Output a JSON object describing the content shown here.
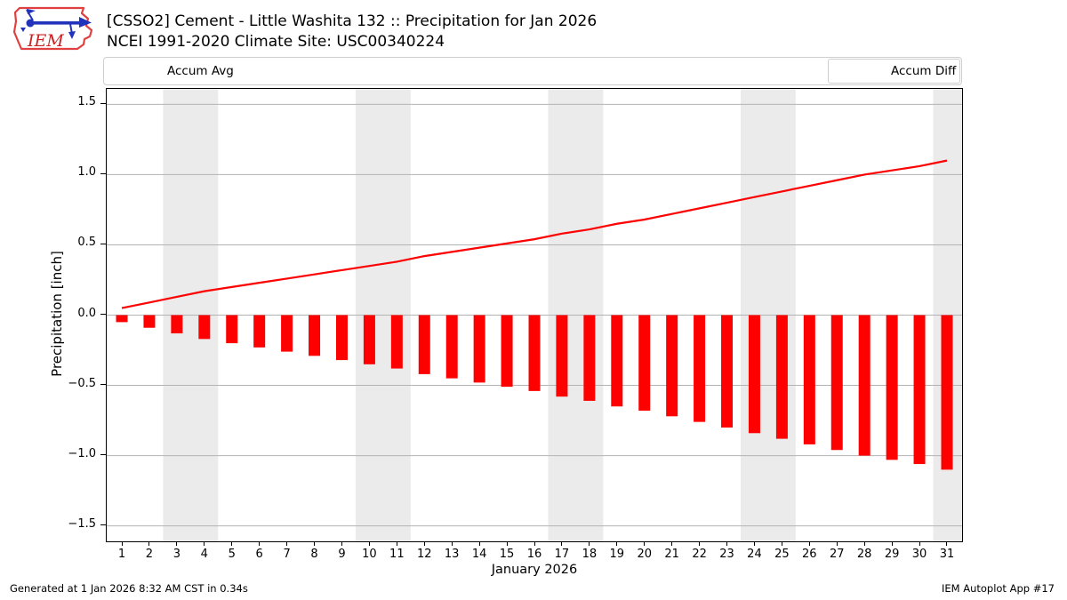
{
  "header": {
    "title_line1": "[CSSO2] Cement - Little Washita 132 :: Precipitation for Jan 2026",
    "title_line2": "NCEI 1991-2020 Climate Site: USC00340224",
    "logo_text": "IEM"
  },
  "legend": {
    "avg_label": "Accum Avg",
    "diff_label": "Accum Diff"
  },
  "footer": {
    "generated": "Generated at 1 Jan 2026 8:32 AM CST in 0.34s",
    "app": "IEM Autoplot App #17"
  },
  "colors": {
    "accent_red": "#ff0000",
    "weekend_band": "#ebebeb",
    "gridline": "#b3b3b3",
    "spine": "#000000",
    "logo_red": "#e04040",
    "logo_blue": "#2233bb"
  },
  "chart_data": {
    "type": "bar",
    "title": "[CSSO2] Cement - Little Washita 132 :: Precipitation for Jan 2026",
    "subtitle": "NCEI 1991-2020 Climate Site: USC00340224",
    "xlabel": "January 2026",
    "ylabel": "Precipitation [inch]",
    "x": [
      1,
      2,
      3,
      4,
      5,
      6,
      7,
      8,
      9,
      10,
      11,
      12,
      13,
      14,
      15,
      16,
      17,
      18,
      19,
      20,
      21,
      22,
      23,
      24,
      25,
      26,
      27,
      28,
      29,
      30,
      31
    ],
    "series": [
      {
        "name": "Accum Avg",
        "type": "line",
        "color": "#ff0000",
        "values": [
          0.05,
          0.09,
          0.13,
          0.17,
          0.2,
          0.23,
          0.26,
          0.29,
          0.32,
          0.35,
          0.38,
          0.42,
          0.45,
          0.48,
          0.51,
          0.54,
          0.58,
          0.61,
          0.65,
          0.68,
          0.72,
          0.76,
          0.8,
          0.84,
          0.88,
          0.92,
          0.96,
          1.0,
          1.03,
          1.06,
          1.1
        ]
      },
      {
        "name": "Accum Diff",
        "type": "bar",
        "color": "#ff0000",
        "values": [
          -0.05,
          -0.09,
          -0.13,
          -0.17,
          -0.2,
          -0.23,
          -0.26,
          -0.29,
          -0.32,
          -0.35,
          -0.38,
          -0.42,
          -0.45,
          -0.48,
          -0.51,
          -0.54,
          -0.58,
          -0.61,
          -0.65,
          -0.68,
          -0.72,
          -0.76,
          -0.8,
          -0.84,
          -0.88,
          -0.92,
          -0.96,
          -1.0,
          -1.03,
          -1.06,
          -1.1
        ]
      }
    ],
    "xlim": [
      0.45,
      31.55
    ],
    "ylim": [
      -1.61,
      1.61
    ],
    "yticks": [
      -1.5,
      -1.0,
      -0.5,
      0.0,
      0.5,
      1.0,
      1.5
    ],
    "grid": true,
    "legend_position": "top",
    "weekend_bands": [
      [
        2.5,
        4.5
      ],
      [
        9.5,
        11.5
      ],
      [
        16.5,
        18.5
      ],
      [
        23.5,
        25.5
      ],
      [
        30.5,
        31.55
      ]
    ]
  }
}
